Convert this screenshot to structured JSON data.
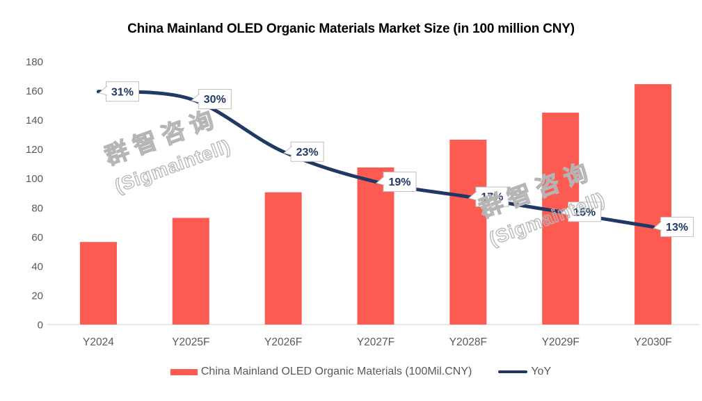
{
  "title": "China Mainland OLED Organic Materials Market Size (in 100 million CNY)",
  "watermark": {
    "line1": "群智咨询",
    "line2": "(Sigmaintell)"
  },
  "legend": {
    "items": [
      {
        "label": "China Mainland OLED Organic Materials (100Mil.CNY)",
        "marker": "bar"
      },
      {
        "label": "YoY",
        "marker": "line"
      }
    ]
  },
  "colors": {
    "bar": "#FB5B51",
    "line": "#1F3864",
    "title_text": "#000000",
    "axis_text": "#595959",
    "axis_line": "#D9D9D9",
    "legend_text": "#595959",
    "callout_border": "#BFBFBF",
    "callout_fill": "#FFFFFF",
    "callout_text": "#1F3864",
    "watermark_outline": "#B5B5B5"
  },
  "chart_data": {
    "type": "bar",
    "subtype": "combo-bar-line",
    "title": "China Mainland OLED Organic Materials Market Size (in 100 million CNY)",
    "categories": [
      "Y2024",
      "Y2025F",
      "Y2026F",
      "Y2027F",
      "Y2028F",
      "Y2029F",
      "Y2030F"
    ],
    "series": [
      {
        "name": "China Mainland OLED Organic Materials (100Mil.CNY)",
        "type": "bar",
        "axis": "primary",
        "values": [
          56.5,
          73,
          90.5,
          107.5,
          126.5,
          145,
          164.5
        ]
      },
      {
        "name": "YoY",
        "type": "line",
        "axis": "secondary",
        "values": [
          31,
          30,
          23,
          19,
          17,
          15,
          13
        ],
        "labels": [
          "31%",
          "30%",
          "23%",
          "19%",
          "17%",
          "15%",
          "13%"
        ]
      }
    ],
    "y_axis": {
      "min": 0,
      "max": 180,
      "step": 20,
      "ticks": [
        0,
        20,
        40,
        60,
        80,
        100,
        120,
        140,
        160,
        180
      ]
    },
    "y2_axis": {
      "min": 0,
      "max": 35,
      "visible": false
    },
    "grid": false,
    "legend_position": "bottom",
    "xlabel": "",
    "ylabel": ""
  }
}
